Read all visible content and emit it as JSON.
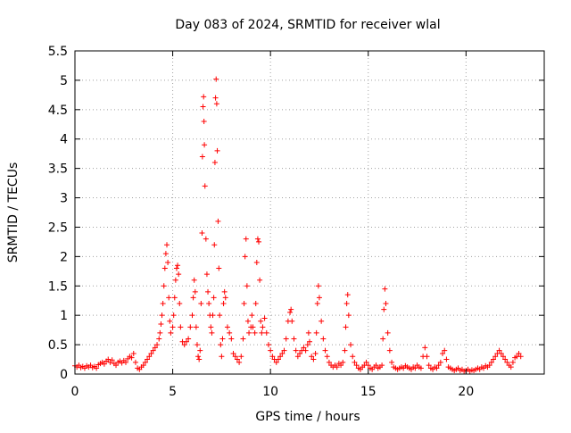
{
  "chart_data": {
    "type": "scatter",
    "title": "Day 083 of 2024, SRMTID for receiver wlal",
    "xlabel": "GPS time / hours",
    "ylabel": "SRMTID / TECUs",
    "xlim": [
      0,
      24
    ],
    "ylim": [
      0,
      5.5
    ],
    "x_ticks": [
      0,
      5,
      10,
      15,
      20
    ],
    "x_tick_labels": [
      "0",
      "5",
      "10",
      "15",
      "20"
    ],
    "y_ticks": [
      0,
      0.5,
      1,
      1.5,
      2,
      2.5,
      3,
      3.5,
      4,
      4.5,
      5,
      5.5
    ],
    "y_tick_labels": [
      "0",
      "0.5",
      "1",
      "1.5",
      "2",
      "2.5",
      "3",
      "3.5",
      "4",
      "4.5",
      "5",
      "5.5"
    ],
    "grid": true,
    "marker": "plus",
    "color": "#ff0000",
    "series": [
      {
        "name": "SRMTID",
        "points": [
          [
            0.0,
            0.14
          ],
          [
            0.1,
            0.12
          ],
          [
            0.2,
            0.15
          ],
          [
            0.3,
            0.11
          ],
          [
            0.4,
            0.13
          ],
          [
            0.5,
            0.1
          ],
          [
            0.6,
            0.14
          ],
          [
            0.7,
            0.12
          ],
          [
            0.8,
            0.15
          ],
          [
            0.9,
            0.11
          ],
          [
            1.0,
            0.13
          ],
          [
            1.1,
            0.1
          ],
          [
            1.2,
            0.16
          ],
          [
            1.3,
            0.18
          ],
          [
            1.4,
            0.2
          ],
          [
            1.5,
            0.17
          ],
          [
            1.6,
            0.22
          ],
          [
            1.7,
            0.25
          ],
          [
            1.8,
            0.2
          ],
          [
            1.9,
            0.24
          ],
          [
            2.0,
            0.18
          ],
          [
            2.1,
            0.15
          ],
          [
            2.2,
            0.2
          ],
          [
            2.3,
            0.22
          ],
          [
            2.4,
            0.19
          ],
          [
            2.5,
            0.23
          ],
          [
            2.6,
            0.2
          ],
          [
            2.7,
            0.26
          ],
          [
            2.8,
            0.3
          ],
          [
            2.9,
            0.28
          ],
          [
            3.0,
            0.35
          ],
          [
            3.1,
            0.2
          ],
          [
            3.2,
            0.1
          ],
          [
            3.3,
            0.08
          ],
          [
            3.4,
            0.12
          ],
          [
            3.5,
            0.15
          ],
          [
            3.6,
            0.2
          ],
          [
            3.7,
            0.25
          ],
          [
            3.8,
            0.3
          ],
          [
            3.9,
            0.35
          ],
          [
            4.0,
            0.4
          ],
          [
            4.1,
            0.45
          ],
          [
            4.2,
            0.5
          ],
          [
            4.3,
            0.6
          ],
          [
            4.35,
            0.7
          ],
          [
            4.4,
            0.85
          ],
          [
            4.45,
            1.0
          ],
          [
            4.5,
            1.2
          ],
          [
            4.55,
            1.5
          ],
          [
            4.6,
            1.8
          ],
          [
            4.65,
            2.05
          ],
          [
            4.7,
            2.2
          ],
          [
            4.75,
            1.9
          ],
          [
            4.8,
            1.3
          ],
          [
            4.85,
            0.9
          ],
          [
            4.9,
            0.7
          ],
          [
            5.0,
            0.8
          ],
          [
            5.05,
            1.0
          ],
          [
            5.1,
            1.3
          ],
          [
            5.15,
            1.6
          ],
          [
            5.2,
            1.8
          ],
          [
            5.25,
            1.85
          ],
          [
            5.3,
            1.7
          ],
          [
            5.35,
            1.2
          ],
          [
            5.4,
            0.8
          ],
          [
            5.5,
            0.55
          ],
          [
            5.6,
            0.5
          ],
          [
            5.7,
            0.55
          ],
          [
            5.8,
            0.6
          ],
          [
            5.9,
            0.8
          ],
          [
            6.0,
            1.0
          ],
          [
            6.05,
            1.3
          ],
          [
            6.1,
            1.6
          ],
          [
            6.15,
            1.4
          ],
          [
            6.2,
            0.8
          ],
          [
            6.25,
            0.5
          ],
          [
            6.3,
            0.3
          ],
          [
            6.35,
            0.25
          ],
          [
            6.4,
            0.4
          ],
          [
            6.45,
            1.2
          ],
          [
            6.5,
            2.4
          ],
          [
            6.52,
            3.7
          ],
          [
            6.55,
            4.55
          ],
          [
            6.58,
            4.72
          ],
          [
            6.6,
            4.3
          ],
          [
            6.62,
            3.9
          ],
          [
            6.65,
            3.2
          ],
          [
            6.7,
            2.3
          ],
          [
            6.75,
            1.7
          ],
          [
            6.8,
            1.4
          ],
          [
            6.85,
            1.2
          ],
          [
            6.9,
            1.0
          ],
          [
            6.95,
            0.8
          ],
          [
            7.0,
            0.7
          ],
          [
            7.05,
            1.0
          ],
          [
            7.1,
            1.3
          ],
          [
            7.13,
            2.2
          ],
          [
            7.16,
            3.6
          ],
          [
            7.19,
            4.7
          ],
          [
            7.22,
            5.02
          ],
          [
            7.25,
            4.6
          ],
          [
            7.28,
            3.8
          ],
          [
            7.32,
            2.6
          ],
          [
            7.36,
            1.8
          ],
          [
            7.4,
            1.0
          ],
          [
            7.45,
            0.5
          ],
          [
            7.5,
            0.3
          ],
          [
            7.55,
            0.6
          ],
          [
            7.6,
            1.2
          ],
          [
            7.65,
            1.4
          ],
          [
            7.7,
            1.3
          ],
          [
            7.8,
            0.8
          ],
          [
            7.9,
            0.7
          ],
          [
            8.0,
            0.6
          ],
          [
            8.1,
            0.35
          ],
          [
            8.2,
            0.3
          ],
          [
            8.3,
            0.25
          ],
          [
            8.4,
            0.2
          ],
          [
            8.5,
            0.3
          ],
          [
            8.6,
            0.6
          ],
          [
            8.65,
            1.2
          ],
          [
            8.7,
            2.0
          ],
          [
            8.75,
            2.3
          ],
          [
            8.8,
            1.5
          ],
          [
            8.85,
            0.9
          ],
          [
            8.9,
            0.7
          ],
          [
            9.0,
            0.8
          ],
          [
            9.05,
            1.0
          ],
          [
            9.1,
            0.8
          ],
          [
            9.2,
            0.7
          ],
          [
            9.25,
            1.2
          ],
          [
            9.3,
            1.9
          ],
          [
            9.35,
            2.3
          ],
          [
            9.4,
            2.25
          ],
          [
            9.45,
            1.6
          ],
          [
            9.5,
            0.9
          ],
          [
            9.55,
            0.7
          ],
          [
            9.6,
            0.8
          ],
          [
            9.7,
            0.95
          ],
          [
            9.8,
            0.7
          ],
          [
            9.9,
            0.5
          ],
          [
            10.0,
            0.4
          ],
          [
            10.1,
            0.3
          ],
          [
            10.2,
            0.25
          ],
          [
            10.3,
            0.2
          ],
          [
            10.4,
            0.25
          ],
          [
            10.5,
            0.3
          ],
          [
            10.6,
            0.35
          ],
          [
            10.7,
            0.4
          ],
          [
            10.8,
            0.6
          ],
          [
            10.9,
            0.9
          ],
          [
            11.0,
            1.05
          ],
          [
            11.05,
            1.1
          ],
          [
            11.1,
            0.9
          ],
          [
            11.2,
            0.6
          ],
          [
            11.3,
            0.4
          ],
          [
            11.4,
            0.3
          ],
          [
            11.5,
            0.35
          ],
          [
            11.6,
            0.4
          ],
          [
            11.7,
            0.45
          ],
          [
            11.8,
            0.4
          ],
          [
            11.9,
            0.5
          ],
          [
            11.95,
            0.7
          ],
          [
            12.0,
            0.55
          ],
          [
            12.1,
            0.3
          ],
          [
            12.2,
            0.25
          ],
          [
            12.3,
            0.35
          ],
          [
            12.35,
            0.7
          ],
          [
            12.4,
            1.2
          ],
          [
            12.45,
            1.5
          ],
          [
            12.5,
            1.3
          ],
          [
            12.6,
            0.9
          ],
          [
            12.7,
            0.6
          ],
          [
            12.8,
            0.4
          ],
          [
            12.9,
            0.3
          ],
          [
            13.0,
            0.2
          ],
          [
            13.1,
            0.15
          ],
          [
            13.2,
            0.12
          ],
          [
            13.3,
            0.15
          ],
          [
            13.4,
            0.12
          ],
          [
            13.5,
            0.18
          ],
          [
            13.6,
            0.15
          ],
          [
            13.7,
            0.2
          ],
          [
            13.8,
            0.4
          ],
          [
            13.85,
            0.8
          ],
          [
            13.9,
            1.2
          ],
          [
            13.95,
            1.35
          ],
          [
            14.0,
            1.0
          ],
          [
            14.1,
            0.5
          ],
          [
            14.2,
            0.3
          ],
          [
            14.3,
            0.2
          ],
          [
            14.4,
            0.15
          ],
          [
            14.5,
            0.1
          ],
          [
            14.6,
            0.08
          ],
          [
            14.7,
            0.12
          ],
          [
            14.8,
            0.15
          ],
          [
            14.9,
            0.2
          ],
          [
            15.0,
            0.15
          ],
          [
            15.1,
            0.1
          ],
          [
            15.2,
            0.08
          ],
          [
            15.3,
            0.12
          ],
          [
            15.4,
            0.15
          ],
          [
            15.5,
            0.1
          ],
          [
            15.6,
            0.12
          ],
          [
            15.7,
            0.15
          ],
          [
            15.75,
            0.6
          ],
          [
            15.8,
            1.1
          ],
          [
            15.85,
            1.45
          ],
          [
            15.9,
            1.2
          ],
          [
            16.0,
            0.7
          ],
          [
            16.1,
            0.4
          ],
          [
            16.2,
            0.2
          ],
          [
            16.3,
            0.12
          ],
          [
            16.4,
            0.1
          ],
          [
            16.5,
            0.08
          ],
          [
            16.6,
            0.1
          ],
          [
            16.7,
            0.12
          ],
          [
            16.8,
            0.1
          ],
          [
            16.9,
            0.14
          ],
          [
            17.0,
            0.12
          ],
          [
            17.1,
            0.1
          ],
          [
            17.2,
            0.08
          ],
          [
            17.3,
            0.12
          ],
          [
            17.4,
            0.1
          ],
          [
            17.5,
            0.15
          ],
          [
            17.6,
            0.12
          ],
          [
            17.7,
            0.1
          ],
          [
            17.8,
            0.3
          ],
          [
            17.9,
            0.45
          ],
          [
            18.0,
            0.3
          ],
          [
            18.1,
            0.15
          ],
          [
            18.2,
            0.1
          ],
          [
            18.3,
            0.08
          ],
          [
            18.4,
            0.12
          ],
          [
            18.5,
            0.1
          ],
          [
            18.6,
            0.15
          ],
          [
            18.7,
            0.2
          ],
          [
            18.8,
            0.35
          ],
          [
            18.9,
            0.4
          ],
          [
            19.0,
            0.25
          ],
          [
            19.1,
            0.12
          ],
          [
            19.2,
            0.1
          ],
          [
            19.3,
            0.08
          ],
          [
            19.4,
            0.06
          ],
          [
            19.5,
            0.08
          ],
          [
            19.6,
            0.1
          ],
          [
            19.7,
            0.06
          ],
          [
            19.8,
            0.08
          ],
          [
            19.9,
            0.05
          ],
          [
            20.0,
            0.06
          ],
          [
            20.1,
            0.08
          ],
          [
            20.2,
            0.05
          ],
          [
            20.3,
            0.07
          ],
          [
            20.4,
            0.06
          ],
          [
            20.5,
            0.08
          ],
          [
            20.6,
            0.1
          ],
          [
            20.7,
            0.08
          ],
          [
            20.8,
            0.12
          ],
          [
            20.9,
            0.1
          ],
          [
            21.0,
            0.14
          ],
          [
            21.1,
            0.12
          ],
          [
            21.2,
            0.15
          ],
          [
            21.3,
            0.2
          ],
          [
            21.4,
            0.25
          ],
          [
            21.5,
            0.3
          ],
          [
            21.6,
            0.35
          ],
          [
            21.7,
            0.4
          ],
          [
            21.8,
            0.35
          ],
          [
            21.9,
            0.3
          ],
          [
            22.0,
            0.25
          ],
          [
            22.1,
            0.2
          ],
          [
            22.2,
            0.15
          ],
          [
            22.3,
            0.12
          ],
          [
            22.4,
            0.2
          ],
          [
            22.5,
            0.28
          ],
          [
            22.6,
            0.3
          ],
          [
            22.7,
            0.35
          ],
          [
            22.8,
            0.3
          ]
        ]
      }
    ]
  }
}
